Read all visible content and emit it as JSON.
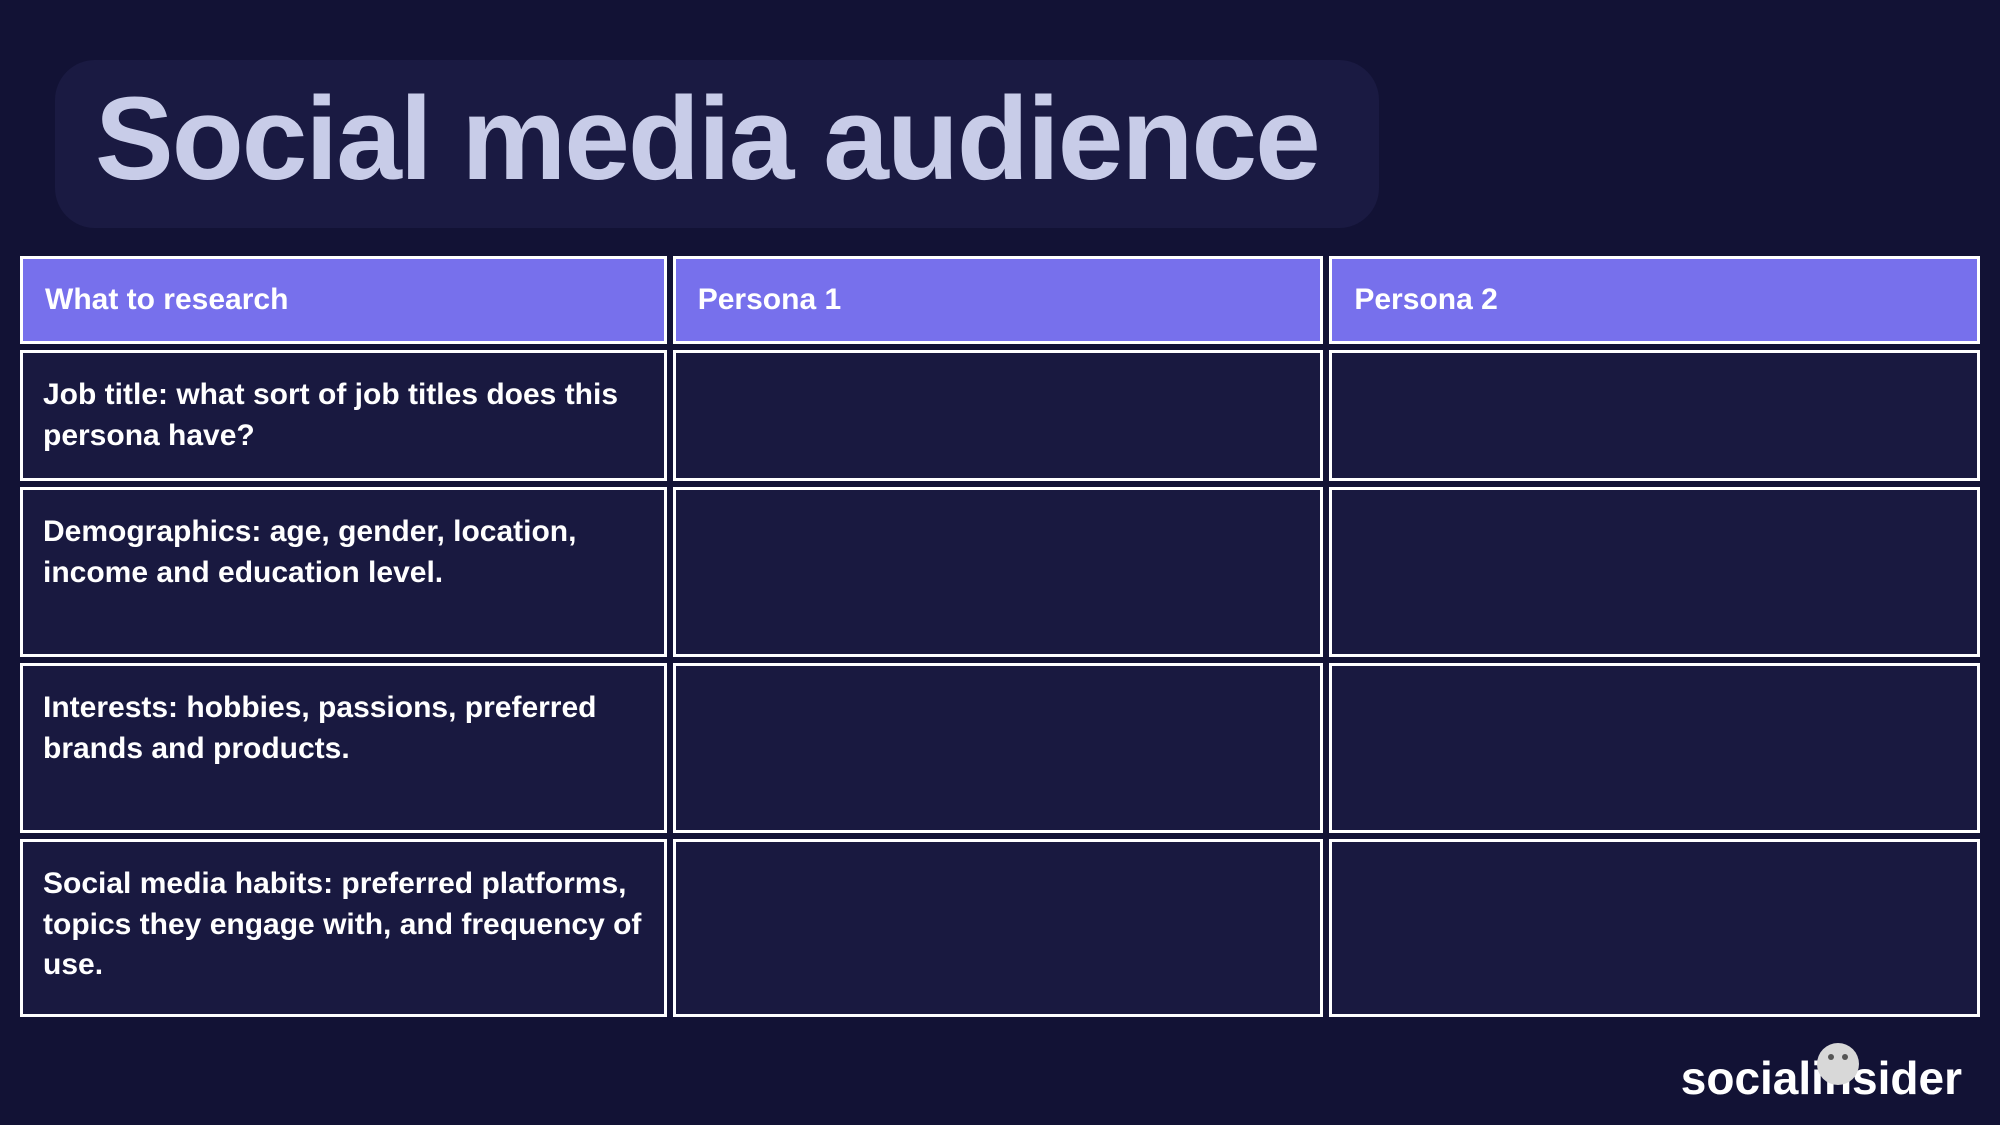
{
  "title": "Social media audience",
  "table": {
    "header_bg": "#7770ec",
    "header_text_color": "#ffffff",
    "cell_bg": "#191940",
    "cell_border": "#ffffff",
    "columns": [
      "What to research",
      "Persona 1",
      "Persona 2"
    ],
    "rows": [
      {
        "label": "Job title: what sort of job titles does this persona have?",
        "persona1": "",
        "persona2": ""
      },
      {
        "label": "Demographics: age, gender, location, income and education level.",
        "persona1": "",
        "persona2": ""
      },
      {
        "label": "Interests: hobbies, passions, preferred brands and products.",
        "persona1": "",
        "persona2": ""
      },
      {
        "label": "Social media habits: preferred platforms, topics they engage with, and frequency of use.",
        "persona1": "",
        "persona2": ""
      }
    ]
  },
  "logo": {
    "text": "socialinsider"
  },
  "styling": {
    "page_bg": "#121235",
    "title_bg": "#1a1a42",
    "title_color": "#c8cce8",
    "title_fontsize": 118,
    "header_fontsize": 30,
    "cell_fontsize": 30,
    "logo_color": "#ffffff",
    "logo_fontsize": 46
  }
}
